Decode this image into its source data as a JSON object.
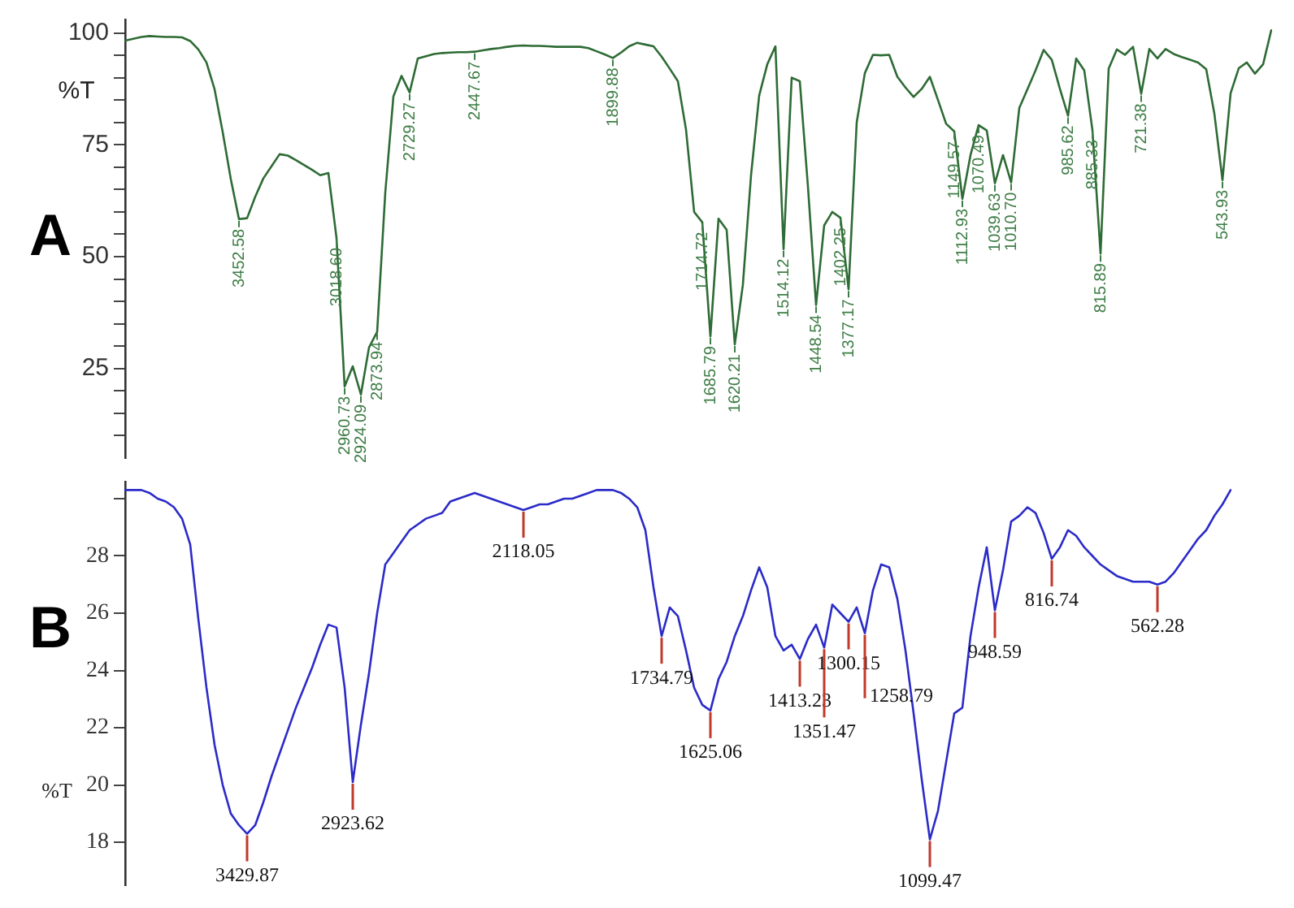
{
  "chart_data": [
    {
      "type": "line",
      "title": "A",
      "ylabel": "%T",
      "ylim": [
        5,
        103
      ],
      "tick_labels": "y",
      "categories": [
        null,
        null,
        null,
        null,
        null,
        null,
        null,
        null,
        null,
        null,
        null,
        null,
        null,
        null,
        null,
        null,
        null,
        null,
        null,
        null,
        null,
        null,
        null,
        null,
        null,
        null,
        null,
        null,
        null,
        null,
        null,
        null,
        null,
        null,
        null,
        null,
        null,
        null,
        null,
        null,
        null,
        null,
        null,
        null,
        null,
        null,
        null,
        null,
        null,
        null,
        null,
        null,
        null,
        null,
        null,
        null,
        null,
        null,
        null,
        null,
        null,
        null,
        null,
        null,
        null,
        null,
        null,
        null,
        null,
        null,
        null,
        null,
        null,
        null,
        null,
        null,
        null,
        null,
        null,
        null,
        null,
        null,
        null,
        null,
        null,
        null,
        null,
        null,
        null,
        null,
        null,
        null,
        null,
        null,
        null,
        null,
        null,
        null,
        null,
        null,
        null,
        null,
        null,
        null,
        null,
        null,
        null,
        null,
        null,
        null,
        null,
        null,
        null,
        null,
        null,
        null,
        null,
        null,
        null,
        null,
        null,
        null,
        null,
        null,
        null,
        null,
        null,
        null,
        null,
        null,
        null,
        null,
        null,
        null,
        null,
        null,
        null,
        null,
        null,
        null,
        null,
        null
      ],
      "yticks": [
        {
          "value": 10,
          "label": null
        },
        {
          "value": 15,
          "label": null
        },
        {
          "value": 20,
          "label": null
        },
        25,
        {
          "value": 30,
          "label": null
        },
        {
          "value": 35,
          "label": null
        },
        {
          "value": 40,
          "label": null
        },
        {
          "value": 45,
          "label": null
        },
        50,
        {
          "value": 55,
          "label": null
        },
        {
          "value": 60,
          "label": null
        },
        {
          "value": 65,
          "label": null
        },
        {
          "value": 70,
          "label": null
        },
        75,
        {
          "value": 80,
          "label": null
        },
        {
          "value": 85,
          "label": null
        },
        {
          "value": 90,
          "label": null
        },
        {
          "value": 95,
          "label": null
        },
        100
      ],
      "series": [
        {
          "color": "#2e6b35",
          "values": [
            98.3,
            98.7,
            99.1,
            99.3,
            99.2,
            99.1,
            99.1,
            99,
            98.2,
            96.3,
            93.4,
            87.4,
            77.8,
            67.3,
            58.4,
            58.6,
            63.4,
            67.5,
            70.2,
            72.9,
            72.6,
            71.6,
            70.5,
            69.4,
            68.2,
            68.7,
            54.2,
            21,
            25.5,
            19.2,
            29.7,
            33.2,
            64.3,
            85.8,
            90.4,
            86.7,
            94.3,
            94.8,
            95.3,
            95.5,
            95.6,
            95.7,
            95.7,
            95.8,
            96.1,
            96.4,
            96.6,
            96.9,
            97.1,
            97.2,
            97.1,
            97.1,
            97,
            96.9,
            96.9,
            96.9,
            96.9,
            96.6,
            95.9,
            95.2,
            94.4,
            95.6,
            97,
            97.8,
            97.4,
            97,
            94.7,
            92,
            89.2,
            78.4,
            60,
            57.7,
            32.2,
            58.5,
            56,
            30.4,
            43.8,
            68.2,
            86,
            93,
            97,
            51.7,
            90,
            89.2,
            65.7,
            39.2,
            57,
            60,
            58.7,
            42.7,
            80,
            91,
            95.1,
            95,
            95.1,
            90.2,
            87.8,
            85.7,
            87.5,
            90.2,
            85,
            79.7,
            78,
            62.9,
            72.7,
            79.4,
            78.2,
            66.4,
            72.7,
            66.6,
            83.2,
            87.4,
            91.6,
            96.2,
            94,
            87.5,
            81.5,
            94.3,
            91.6,
            78.3,
            50.7,
            92,
            96.3,
            95.1,
            96.9,
            86.4,
            96.4,
            94.3,
            96.4,
            95.3,
            94.6,
            94,
            93.4,
            91.9,
            82,
            67.1,
            86.5,
            92.1,
            93.4,
            90.9,
            93,
            100.6
          ]
        }
      ],
      "annotations": [
        {
          "text": "3452.58",
          "y": 58.4
        },
        {
          "text": "3018.60",
          "y": 54.2
        },
        {
          "text": "2960.73",
          "y": 21
        },
        {
          "text": "2924.09",
          "y": 19.2
        },
        {
          "text": "2873.94",
          "y": 33.2
        },
        {
          "text": "2729.27",
          "y": 86.7
        },
        {
          "text": "2447.67",
          "y": 95.8
        },
        {
          "text": "1899.88",
          "y": 94.4
        },
        {
          "text": "1714.72",
          "y": 57.7
        },
        {
          "text": "1685.79",
          "y": 32.2
        },
        {
          "text": "1620.21",
          "y": 30.4
        },
        {
          "text": "1514.12",
          "y": 51.7
        },
        {
          "text": "1448.54",
          "y": 39.2
        },
        {
          "text": "1402.25",
          "y": 58.7
        },
        {
          "text": "1377.17",
          "y": 42.7
        },
        {
          "text": "1149.57",
          "y": 78
        },
        {
          "text": "1112.93",
          "y": 62.9
        },
        {
          "text": "1070.49",
          "y": 79.4
        },
        {
          "text": "1039.63",
          "y": 66.4
        },
        {
          "text": "1010.70",
          "y": 66.6
        },
        {
          "text": "985.62",
          "y": 81.5
        },
        {
          "text": "885.33",
          "y": 78.3
        },
        {
          "text": "815.89",
          "y": 50.7
        },
        {
          "text": "721.38",
          "y": 86.4
        },
        {
          "text": "543.93",
          "y": 67.1
        }
      ]
    },
    {
      "type": "line",
      "title": "B",
      "ylabel": "%T",
      "ylim": [
        16.5,
        30.6
      ],
      "tick_labels": "y",
      "categories": [
        null,
        null,
        null,
        null,
        null,
        null,
        null,
        null,
        null,
        null,
        null,
        null,
        null,
        null,
        null,
        null,
        null,
        null,
        null,
        null,
        null,
        null,
        null,
        null,
        null,
        null,
        null,
        null,
        null,
        null,
        null,
        null,
        null,
        null,
        null,
        null,
        null,
        null,
        null,
        null,
        null,
        null,
        null,
        null,
        null,
        null,
        null,
        null,
        null,
        null,
        null,
        null,
        null,
        null,
        null,
        null,
        null,
        null,
        null,
        null,
        null,
        null,
        null,
        null,
        null,
        null,
        null,
        null,
        null,
        null,
        null,
        null,
        null,
        null,
        null,
        null,
        null,
        null,
        null,
        null,
        null,
        null,
        null,
        null,
        null,
        null,
        null,
        null,
        null,
        null,
        null,
        null,
        null,
        null,
        null,
        null,
        null,
        null,
        null,
        null,
        null,
        null,
        null,
        null,
        null,
        null,
        null,
        null,
        null,
        null,
        null,
        null,
        null,
        null,
        null,
        null,
        null,
        null,
        null,
        null,
        null,
        null,
        null,
        null,
        null,
        null,
        null,
        null,
        null,
        null,
        null,
        null,
        null,
        null,
        null,
        null,
        null
      ],
      "yticks": [
        18,
        20,
        22,
        24,
        26,
        28,
        {
          "value": 30,
          "label": null
        }
      ],
      "series": [
        {
          "color": "#2b2bc8",
          "values": [
            30.3,
            30.3,
            30.3,
            30.2,
            30,
            29.9,
            29.7,
            29.3,
            28.4,
            25.8,
            23.4,
            21.4,
            20,
            19,
            18.6,
            18.3,
            18.6,
            19.4,
            20.3,
            21.1,
            21.9,
            22.7,
            23.4,
            24.1,
            24.9,
            25.6,
            25.5,
            23.4,
            20.1,
            22.1,
            23.9,
            26,
            27.7,
            28.1,
            28.5,
            28.9,
            29.1,
            29.3,
            29.4,
            29.5,
            29.9,
            30,
            30.1,
            30.2,
            30.1,
            30,
            29.9,
            29.8,
            29.7,
            29.6,
            29.7,
            29.8,
            29.8,
            29.9,
            30,
            30,
            30.1,
            30.2,
            30.3,
            30.3,
            30.3,
            30.2,
            30,
            29.7,
            28.9,
            26.9,
            25.2,
            26.2,
            25.9,
            24.7,
            23.4,
            22.8,
            22.6,
            23.7,
            24.3,
            25.2,
            25.9,
            26.8,
            27.6,
            26.9,
            25.2,
            24.7,
            24.9,
            24.4,
            25.1,
            25.6,
            24.8,
            26.3,
            26,
            25.7,
            26.2,
            25.3,
            26.8,
            27.7,
            27.6,
            26.5,
            24.7,
            22.5,
            20.2,
            18.1,
            19.1,
            20.8,
            22.5,
            22.7,
            25.2,
            26.9,
            28.3,
            26.1,
            27.5,
            29.2,
            29.4,
            29.7,
            29.5,
            28.8,
            27.9,
            28.3,
            28.9,
            28.7,
            28.3,
            28,
            27.7,
            27.5,
            27.3,
            27.2,
            27.1,
            27.1,
            27.1,
            27,
            27.1,
            27.4,
            27.8,
            28.2,
            28.6,
            28.9,
            29.4,
            29.8,
            30.3
          ]
        }
      ],
      "annotations": [
        {
          "text": "3429.87",
          "y": 18.3
        },
        {
          "text": "2923.62",
          "y": 20.1
        },
        {
          "text": "2118.05",
          "y": 29.6
        },
        {
          "text": "1734.79",
          "y": 25.2
        },
        {
          "text": "1625.06",
          "y": 22.6
        },
        {
          "text": "1413.23",
          "y": 24.4
        },
        {
          "text": "1351.47",
          "y": 24.8
        },
        {
          "text": "1300.15",
          "y": 25.7
        },
        {
          "text": "1258.79",
          "y": 25.3
        },
        {
          "text": "1099.47",
          "y": 18.1
        },
        {
          "text": "948.59",
          "y": 26.1
        },
        {
          "text": "816.74",
          "y": 27.9
        },
        {
          "text": "562.28",
          "y": 27
        }
      ]
    }
  ]
}
